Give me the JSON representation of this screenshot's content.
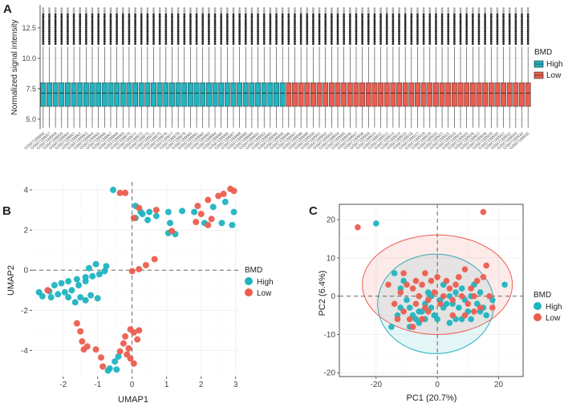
{
  "figure": {
    "colors": {
      "High": "#1fb4c0",
      "Low": "#ec5d4f"
    }
  },
  "chart_data": [
    {
      "panel": "A",
      "type": "box",
      "title": "",
      "ylabel": "Normalized signal intensity",
      "xlabel": "",
      "ylim": [
        4.2,
        14.4
      ],
      "yticks": [
        "5.0",
        "7.5",
        "10.0",
        "12.5"
      ],
      "legend": {
        "title": "BMD",
        "entries": [
          "High",
          "Low"
        ],
        "placement": "right"
      },
      "samples": [
        "GSM7188856",
        "GSM7188857",
        "GSM7188858",
        "GSM7188859",
        "GSM7188860",
        "GSM7188861",
        "GSM7188862",
        "GSM7188863",
        "GSM7188864",
        "GSM7188865",
        "GSM7188866",
        "GSM7188867",
        "GSM7188868",
        "GSM7188869",
        "GSM7188870",
        "GSM7188871",
        "GSM7188872",
        "GSM7188873",
        "GSM7188874",
        "GSM7188875",
        "GSM7188876",
        "GSM7188877",
        "GSM7188878",
        "GSM7188879",
        "GSM7188880",
        "GSM7188881",
        "GSM7188882",
        "GSM7188883",
        "GSM7188884",
        "GSM7188885",
        "GSM7188886",
        "GSM7188887",
        "GSM7188888",
        "GSM7188889",
        "GSM7188890",
        "GSM7188891",
        "GSM7188892",
        "GSM7188893",
        "GSM7188894",
        "GSM7188895",
        "GSM7188896",
        "GSM7188897",
        "GSM7188898",
        "GSM7188899",
        "GSM7188900",
        "GSM7188901",
        "GSM7188902",
        "GSM7188903",
        "GSM7188904",
        "GSM7188905",
        "GSM7188906",
        "GSM7188907",
        "GSM7188908",
        "GSM7188909",
        "GSM7188910",
        "GSM7188911",
        "GSM7188912",
        "GSM7188913",
        "GSM7188914",
        "GSM7188915",
        "GSM7188916",
        "GSM7188917",
        "GSM7188918",
        "GSM7188919",
        "GSM7188920",
        "GSM7188921",
        "GSM7188922",
        "GSM7188923",
        "GSM7188924",
        "GSM7188925",
        "GSM7188926",
        "GSM7188927",
        "GSM7188928",
        "GSM7188929",
        "GSM7188930",
        "GSM7188931",
        "GSM7188932",
        "GSM7188933",
        "GSM7188934",
        "GSM7188935"
      ],
      "groups_split_index": 40,
      "box_stats": {
        "whisker_low": 4.3,
        "q1": 6.05,
        "median": 7.15,
        "q3": 8.0,
        "whisker_high": 10.95,
        "outlier_min": 11.2,
        "outlier_max": 14.1
      }
    },
    {
      "panel": "B",
      "type": "scatter",
      "xlabel": "UMAP1",
      "ylabel": "UMAP2",
      "xlim": [
        -2.9,
        3.1
      ],
      "ylim": [
        -5.3,
        4.4
      ],
      "xticks": [
        "-2",
        "-1",
        "0",
        "1",
        "2",
        "3"
      ],
      "yticks": [
        "-4",
        "-2",
        "0",
        "2",
        "4"
      ],
      "xtick_values": [
        -2,
        -1,
        0,
        1,
        2,
        3
      ],
      "ytick_values": [
        -4,
        -2,
        0,
        2,
        4
      ],
      "legend": {
        "title": "BMD",
        "entries": [
          "High",
          "Low"
        ],
        "placement": "right"
      },
      "series": [
        {
          "name": "High",
          "points": [
            [
              -0.55,
              4.0
            ],
            [
              0.1,
              3.2
            ],
            [
              0.3,
              2.8
            ],
            [
              0.5,
              2.9
            ],
            [
              0.25,
              2.9
            ],
            [
              0.1,
              2.6
            ],
            [
              0.45,
              2.5
            ],
            [
              0.7,
              2.7
            ],
            [
              1.05,
              2.9
            ],
            [
              1.1,
              2.35
            ],
            [
              1.05,
              1.85
            ],
            [
              1.45,
              2.95
            ],
            [
              1.8,
              2.9
            ],
            [
              1.25,
              1.8
            ],
            [
              2.1,
              2.35
            ],
            [
              2.35,
              3.15
            ],
            [
              2.6,
              2.35
            ],
            [
              2.9,
              2.25
            ],
            [
              2.95,
              2.9
            ],
            [
              2.7,
              3.4
            ],
            [
              -2.7,
              -1.1
            ],
            [
              -2.6,
              -1.3
            ],
            [
              -2.4,
              -1.05
            ],
            [
              -2.25,
              -0.75
            ],
            [
              -2.05,
              -0.65
            ],
            [
              -1.85,
              -0.55
            ],
            [
              -1.6,
              -0.45
            ],
            [
              -1.35,
              -0.35
            ],
            [
              -1.15,
              -0.3
            ],
            [
              -0.95,
              -0.2
            ],
            [
              -0.75,
              0.2
            ],
            [
              -0.8,
              -0.05
            ],
            [
              -1.05,
              0.3
            ],
            [
              -1.25,
              0.1
            ],
            [
              -1.35,
              -0.55
            ],
            [
              -1.55,
              -0.75
            ],
            [
              -1.75,
              -1.0
            ],
            [
              -1.95,
              -1.1
            ],
            [
              -2.15,
              -1.2
            ],
            [
              -2.35,
              -1.35
            ],
            [
              -1.5,
              -1.35
            ],
            [
              -1.35,
              -1.5
            ],
            [
              -1.2,
              -1.25
            ],
            [
              -1.0,
              -1.4
            ],
            [
              -1.65,
              -1.6
            ],
            [
              -1.85,
              -1.35
            ],
            [
              -0.65,
              -4.9
            ],
            [
              -0.45,
              -4.95
            ],
            [
              -0.7,
              -5.0
            ],
            [
              -0.5,
              -4.55
            ],
            [
              -0.4,
              -4.3
            ]
          ]
        },
        {
          "name": "Low",
          "points": [
            [
              -0.35,
              3.85
            ],
            [
              -0.2,
              3.85
            ],
            [
              0.2,
              3.1
            ],
            [
              0.05,
              2.6
            ],
            [
              0.7,
              3.0
            ],
            [
              1.15,
              1.95
            ],
            [
              1.9,
              3.2
            ],
            [
              2.2,
              3.5
            ],
            [
              2.5,
              3.7
            ],
            [
              2.65,
              3.8
            ],
            [
              2.85,
              4.05
            ],
            [
              2.95,
              3.95
            ],
            [
              1.85,
              2.4
            ],
            [
              2.0,
              2.8
            ],
            [
              2.3,
              2.55
            ],
            [
              2.2,
              2.25
            ],
            [
              0.65,
              0.55
            ],
            [
              0.4,
              0.25
            ],
            [
              0.2,
              0.05
            ],
            [
              0.0,
              -0.05
            ],
            [
              -2.45,
              -1.0
            ],
            [
              -1.6,
              -2.65
            ],
            [
              -1.5,
              -3.05
            ],
            [
              -1.45,
              -3.55
            ],
            [
              -1.4,
              -3.95
            ],
            [
              -1.3,
              -3.8
            ],
            [
              -1.05,
              -3.95
            ],
            [
              -0.9,
              -4.35
            ],
            [
              -0.85,
              -4.8
            ],
            [
              -0.2,
              -3.3
            ],
            [
              -0.25,
              -3.65
            ],
            [
              -0.1,
              -3.9
            ],
            [
              -0.15,
              -4.2
            ],
            [
              -0.05,
              -4.4
            ],
            [
              0.05,
              -4.65
            ],
            [
              -0.35,
              -4.05
            ],
            [
              0.15,
              -3.45
            ],
            [
              0.05,
              -3.1
            ],
            [
              -0.05,
              -2.95
            ],
            [
              0.2,
              -3.0
            ]
          ]
        }
      ]
    },
    {
      "panel": "C",
      "type": "scatter",
      "xlabel": "PC1 (20.7%)",
      "ylabel": "PC2 (6.4%)",
      "xlim": [
        -32,
        28
      ],
      "ylim": [
        -21,
        24
      ],
      "xticks": [
        "-20",
        "0",
        "20"
      ],
      "yticks": [
        "-20",
        "-10",
        "0",
        "10",
        "20"
      ],
      "xtick_values": [
        -20,
        0,
        20
      ],
      "ytick_values": [
        -20,
        -10,
        0,
        10,
        20
      ],
      "legend": {
        "title": "BMD",
        "entries": [
          "High",
          "Low"
        ],
        "placement": "right"
      },
      "ellipses": [
        {
          "group": "High",
          "center": [
            -0.5,
            -2.0
          ],
          "radii": [
            19.0,
            13.0
          ]
        },
        {
          "group": "Low",
          "center": [
            0.0,
            3.0
          ],
          "radii": [
            24.5,
            13.0
          ]
        }
      ],
      "series": [
        {
          "name": "High",
          "points": [
            [
              -20,
              19
            ],
            [
              -14,
              6
            ],
            [
              -12,
              2
            ],
            [
              -11,
              4
            ],
            [
              -10,
              -1
            ],
            [
              -9,
              -3
            ],
            [
              -8,
              -5
            ],
            [
              -7,
              -6
            ],
            [
              -6,
              -7
            ],
            [
              -5,
              -4
            ],
            [
              -4,
              -2
            ],
            [
              -3,
              1
            ],
            [
              -2,
              -3
            ],
            [
              -1,
              -5
            ],
            [
              1,
              -1
            ],
            [
              2,
              3
            ],
            [
              3,
              -2
            ],
            [
              4,
              0
            ],
            [
              5,
              -2
            ],
            [
              6,
              1
            ],
            [
              7,
              -3
            ],
            [
              8,
              2
            ],
            [
              9,
              -1
            ],
            [
              10,
              -4
            ],
            [
              11,
              0
            ],
            [
              12,
              3
            ],
            [
              13,
              -2
            ],
            [
              14,
              1
            ],
            [
              15,
              -3
            ],
            [
              16,
              -5
            ],
            [
              18,
              -1
            ],
            [
              22,
              3
            ],
            [
              -12,
              -3
            ],
            [
              -9,
              -8
            ],
            [
              -6,
              -4
            ],
            [
              -4,
              -6
            ],
            [
              -2,
              0
            ],
            [
              0,
              -6
            ],
            [
              2,
              -3
            ],
            [
              4,
              -7
            ],
            [
              6,
              -6
            ],
            [
              8,
              -6
            ],
            [
              -15,
              -8
            ],
            [
              -13,
              -5
            ],
            [
              11,
              -6
            ],
            [
              14,
              -4
            ]
          ]
        },
        {
          "name": "Low",
          "points": [
            [
              -26,
              18
            ],
            [
              15,
              22
            ],
            [
              -14,
              -2
            ],
            [
              -12,
              1
            ],
            [
              -11,
              6
            ],
            [
              -10,
              3
            ],
            [
              -9,
              -6
            ],
            [
              -8,
              2
            ],
            [
              -7,
              -2
            ],
            [
              -6,
              0
            ],
            [
              -5,
              3
            ],
            [
              -4,
              6
            ],
            [
              -3,
              -1
            ],
            [
              -2,
              4
            ],
            [
              -1,
              1
            ],
            [
              0,
              5
            ],
            [
              1,
              -2
            ],
            [
              2,
              0
            ],
            [
              3,
              4
            ],
            [
              4,
              2
            ],
            [
              5,
              -1
            ],
            [
              6,
              3
            ],
            [
              7,
              5
            ],
            [
              8,
              0
            ],
            [
              9,
              7
            ],
            [
              10,
              -2
            ],
            [
              11,
              2
            ],
            [
              12,
              0
            ],
            [
              13,
              4
            ],
            [
              14,
              -3
            ],
            [
              15,
              5
            ],
            [
              16,
              8
            ],
            [
              17,
              0
            ],
            [
              18,
              -3
            ],
            [
              -13,
              -6
            ],
            [
              -8,
              -8
            ],
            [
              -5,
              -6
            ],
            [
              -3,
              -4
            ],
            [
              -7,
              4
            ],
            [
              -4,
              -3
            ],
            [
              5,
              -5
            ],
            [
              9,
              -5
            ],
            [
              12,
              -4
            ],
            [
              -16,
              3
            ],
            [
              -11,
              -4
            ]
          ]
        }
      ]
    }
  ]
}
